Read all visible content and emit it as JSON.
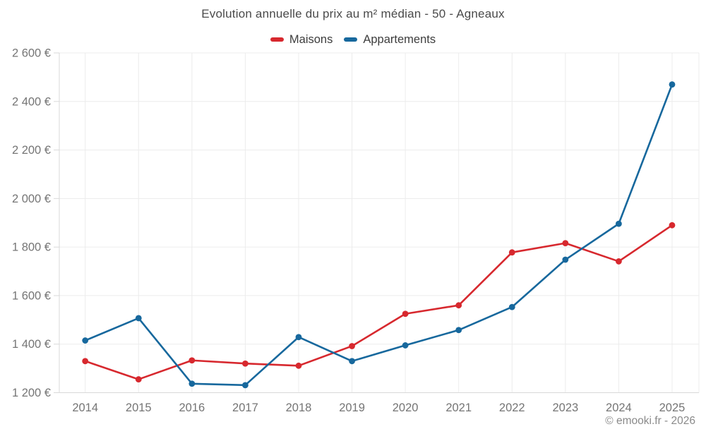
{
  "title": "Evolution annuelle du prix au m² médian - 50 - Agneaux",
  "footer": "© emooki.fr - 2026",
  "colors": {
    "maisons": "#d7282e",
    "appartements": "#17689d",
    "grid": "#ececec",
    "axis": "#d9d9d9",
    "tick_text": "#757575",
    "title_text": "#4a4a4a",
    "background": "#ffffff"
  },
  "chart_data": {
    "type": "line",
    "title": "Evolution annuelle du prix au m² médian - 50 - Agneaux",
    "xlabel": "",
    "ylabel": "",
    "categories": [
      "2014",
      "2015",
      "2016",
      "2017",
      "2018",
      "2019",
      "2020",
      "2021",
      "2022",
      "2023",
      "2024",
      "2025"
    ],
    "series": [
      {
        "name": "Maisons",
        "color": "#d7282e",
        "values": [
          1330,
          1255,
          1333,
          1320,
          1311,
          1392,
          1525,
          1560,
          1778,
          1816,
          1741,
          1890
        ]
      },
      {
        "name": "Appartements",
        "color": "#17689d",
        "values": [
          1415,
          1507,
          1237,
          1231,
          1429,
          1330,
          1395,
          1458,
          1553,
          1748,
          1896,
          2470
        ]
      }
    ],
    "ylim": [
      1200,
      2600
    ],
    "yticks": [
      {
        "value": 1200,
        "label": "1 200 €"
      },
      {
        "value": 1400,
        "label": "1 400 €"
      },
      {
        "value": 1600,
        "label": "1 600 €"
      },
      {
        "value": 1800,
        "label": "1 800 €"
      },
      {
        "value": 2000,
        "label": "2 000 €"
      },
      {
        "value": 2200,
        "label": "2 200 €"
      },
      {
        "value": 2400,
        "label": "2 400 €"
      },
      {
        "value": 2600,
        "label": "2 600 €"
      }
    ],
    "grid": true,
    "legend_position": "top"
  }
}
